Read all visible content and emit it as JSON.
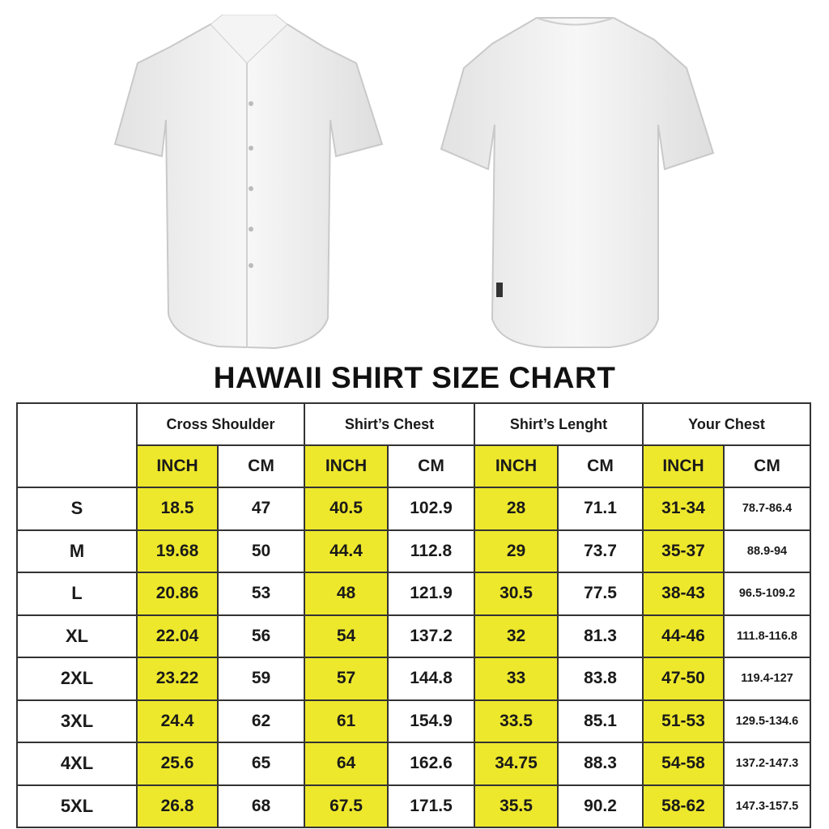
{
  "title": "HAWAII SHIRT SIZE CHART",
  "colors": {
    "highlight": "#eee82c",
    "border": "#333333"
  },
  "groups": [
    "Cross Shoulder",
    "Shirt’s Chest",
    "Shirt’s Lenght",
    "Your Chest"
  ],
  "units": [
    "INCH",
    "CM"
  ],
  "rows": [
    {
      "size": "S",
      "values": [
        "18.5",
        "47",
        "40.5",
        "102.9",
        "28",
        "71.1",
        "31-34",
        "78.7-86.4"
      ]
    },
    {
      "size": "M",
      "values": [
        "19.68",
        "50",
        "44.4",
        "112.8",
        "29",
        "73.7",
        "35-37",
        "88.9-94"
      ]
    },
    {
      "size": "L",
      "values": [
        "20.86",
        "53",
        "48",
        "121.9",
        "30.5",
        "77.5",
        "38-43",
        "96.5-109.2"
      ]
    },
    {
      "size": "XL",
      "values": [
        "22.04",
        "56",
        "54",
        "137.2",
        "32",
        "81.3",
        "44-46",
        "111.8-116.8"
      ]
    },
    {
      "size": "2XL",
      "values": [
        "23.22",
        "59",
        "57",
        "144.8",
        "33",
        "83.8",
        "47-50",
        "119.4-127"
      ]
    },
    {
      "size": "3XL",
      "values": [
        "24.4",
        "62",
        "61",
        "154.9",
        "33.5",
        "85.1",
        "51-53",
        "129.5-134.6"
      ]
    },
    {
      "size": "4XL",
      "values": [
        "25.6",
        "65",
        "64",
        "162.6",
        "34.75",
        "88.3",
        "54-58",
        "137.2-147.3"
      ]
    },
    {
      "size": "5XL",
      "values": [
        "26.8",
        "68",
        "67.5",
        "171.5",
        "35.5",
        "90.2",
        "58-62",
        "147.3-157.5"
      ]
    }
  ]
}
